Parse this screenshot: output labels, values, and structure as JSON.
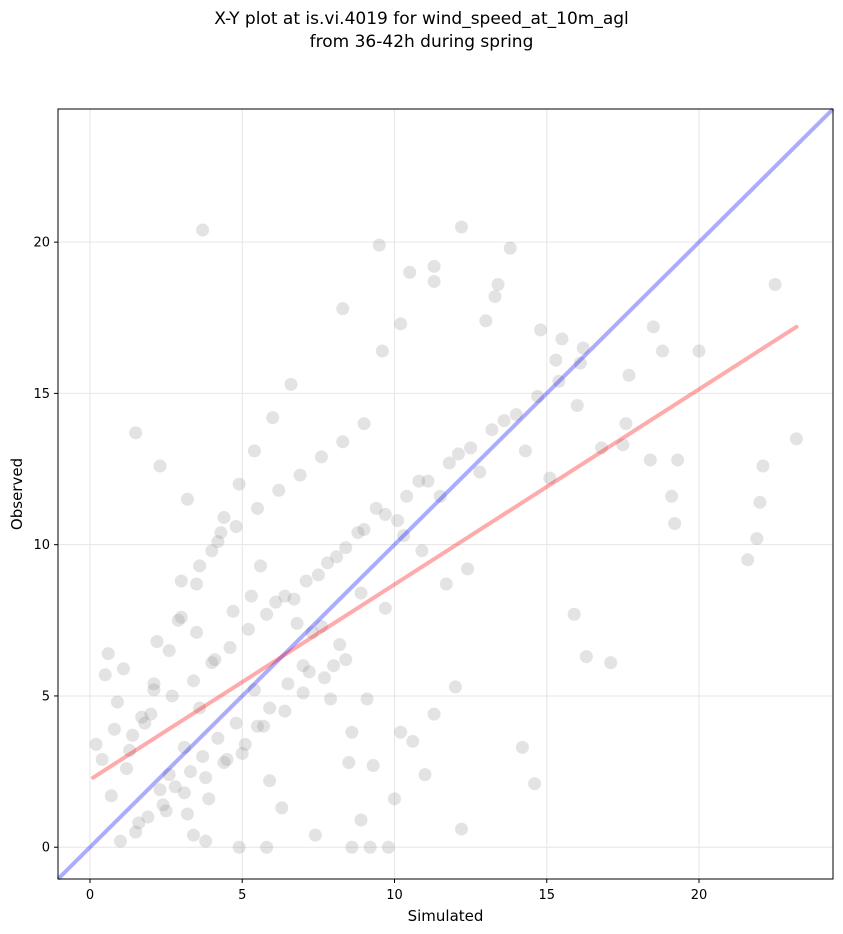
{
  "chart_data": {
    "type": "scatter",
    "title": "X-Y plot at is.vi.4019 for wind_speed_at_10m_agl",
    "subtitle": "from 36-42h during spring",
    "xlabel": "Simulated",
    "ylabel": "Observed",
    "xlim": [
      -1.05,
      24.4
    ],
    "ylim": [
      -1.05,
      24.4
    ],
    "xticks": [
      0,
      5,
      10,
      15,
      20
    ],
    "yticks": [
      0,
      5,
      10,
      15,
      20
    ],
    "grid": true,
    "marker_color": "#808080",
    "one_to_one_line": {
      "x": [
        -1.05,
        24.4
      ],
      "y": [
        -1.05,
        24.4
      ],
      "color": "#0000ff"
    },
    "fit_line": {
      "x": [
        0.1,
        23.2
      ],
      "y": [
        2.3,
        17.2
      ],
      "color": "#ff0000"
    },
    "series": [
      {
        "x": [
          3.7,
          8.3,
          12.2,
          9.5,
          13.8,
          13.4,
          13.3,
          11.3,
          11.3,
          10.5,
          9.6,
          10.2,
          13.0,
          15.5,
          15.3,
          14.8,
          16.2,
          18.5,
          17.7,
          18.8,
          22.5,
          23.2,
          20.0,
          17.5,
          19.3,
          19.2,
          21.6,
          22.1,
          21.9,
          22.0,
          17.1,
          16.3,
          15.9,
          14.6,
          14.2,
          12.2,
          11.0,
          9.8,
          9.2,
          4.9,
          3.8,
          3.4,
          3.2,
          2.3,
          1.6,
          0.5,
          0.8,
          0.2,
          5.8,
          7.4,
          8.6,
          8.9,
          8.5,
          6.3,
          5.9,
          5.5,
          5.0,
          4.4,
          3.9,
          3.6,
          3.1,
          2.6,
          2.1,
          1.8,
          1.4,
          1.1,
          0.9,
          0.6,
          0.4,
          1.2,
          2.2,
          2.9,
          3.5,
          4.1,
          4.7,
          5.3,
          6.1,
          6.8,
          7.5,
          8.1,
          8.8,
          9.4,
          10.1,
          10.8,
          11.5,
          12.1,
          12.8,
          13.6,
          14.3,
          15.1,
          16.0,
          16.8,
          17.6,
          18.4,
          19.1,
          12.4,
          11.7,
          10.9,
          10.3,
          9.7,
          8.9,
          8.2,
          7.6,
          7.0,
          6.5,
          5.9,
          5.4,
          4.8,
          4.2,
          3.7,
          3.3,
          2.8,
          2.4,
          1.9,
          1.5,
          1.0,
          0.7,
          2.0,
          2.7,
          3.4,
          4.0,
          4.6,
          5.2,
          5.8,
          6.4,
          7.1,
          7.8,
          8.4,
          9.0,
          9.7,
          10.4,
          11.1,
          11.8,
          12.5,
          13.2,
          14.0,
          14.7,
          15.4,
          16.1,
          3.0,
          3.6,
          4.2,
          4.8,
          5.5,
          6.2,
          6.9,
          7.6,
          8.3,
          9.0,
          2.5,
          3.1,
          3.8,
          4.5,
          5.1,
          5.7,
          6.4,
          7.0,
          7.7,
          8.4,
          1.3,
          1.7,
          2.1,
          2.6,
          3.0,
          3.5,
          4.0,
          4.4,
          4.9,
          5.4,
          6.0,
          6.6,
          7.2,
          7.9,
          8.6,
          9.3,
          10.0,
          10.6,
          11.3,
          12.0,
          1.5,
          2.3,
          3.2,
          4.3,
          5.6,
          6.7,
          7.3,
          8.0,
          9.1,
          10.2
        ],
        "y": [
          20.4,
          17.8,
          20.5,
          19.9,
          19.8,
          18.6,
          18.2,
          19.2,
          18.7,
          19.0,
          16.4,
          17.3,
          17.4,
          16.8,
          16.1,
          17.1,
          16.5,
          17.2,
          15.6,
          16.4,
          18.6,
          13.5,
          16.4,
          13.3,
          12.8,
          10.7,
          9.5,
          12.6,
          10.2,
          11.4,
          6.1,
          6.3,
          7.7,
          2.1,
          3.3,
          0.6,
          2.4,
          0.0,
          0.0,
          0.0,
          0.2,
          0.4,
          1.1,
          1.9,
          0.8,
          5.7,
          3.9,
          3.4,
          0.0,
          0.4,
          0.0,
          0.9,
          2.8,
          1.3,
          2.2,
          4.0,
          3.1,
          2.8,
          1.6,
          4.6,
          3.3,
          2.4,
          5.2,
          4.1,
          3.7,
          5.9,
          4.8,
          6.4,
          2.9,
          2.6,
          6.8,
          7.5,
          7.1,
          6.2,
          7.8,
          8.3,
          8.1,
          7.4,
          9.0,
          9.6,
          10.4,
          11.2,
          10.8,
          12.1,
          11.6,
          13.0,
          12.4,
          14.1,
          13.1,
          12.2,
          14.6,
          13.2,
          14.0,
          12.8,
          11.6,
          9.2,
          8.7,
          9.8,
          10.3,
          7.9,
          8.4,
          6.7,
          7.3,
          6.0,
          5.4,
          4.6,
          5.2,
          4.1,
          3.6,
          3.0,
          2.5,
          2.0,
          1.4,
          1.0,
          0.5,
          0.2,
          1.7,
          4.4,
          5.0,
          5.5,
          6.1,
          6.6,
          7.2,
          7.7,
          8.3,
          8.8,
          9.4,
          9.9,
          10.5,
          11.0,
          11.6,
          12.1,
          12.7,
          13.2,
          13.8,
          14.3,
          14.9,
          15.4,
          16.0,
          8.8,
          9.3,
          10.1,
          10.6,
          11.2,
          11.8,
          12.3,
          12.9,
          13.4,
          14.0,
          1.2,
          1.8,
          2.3,
          2.9,
          3.4,
          4.0,
          4.5,
          5.1,
          5.6,
          6.2,
          3.2,
          4.3,
          5.4,
          6.5,
          7.6,
          8.7,
          9.8,
          10.9,
          12.0,
          13.1,
          14.2,
          15.3,
          5.8,
          4.9,
          3.8,
          2.7,
          1.6,
          3.5,
          4.4,
          5.3,
          13.7,
          12.6,
          11.5,
          10.4,
          9.3,
          8.2,
          7.1,
          6.0,
          4.9,
          3.8
        ]
      }
    ]
  }
}
